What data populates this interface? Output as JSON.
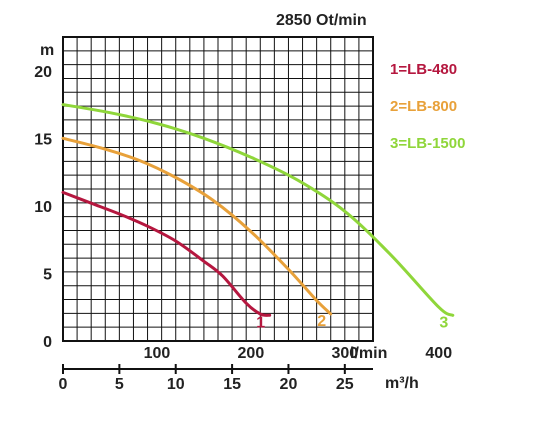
{
  "chart_data": {
    "type": "line",
    "title": "2850 Ot/min",
    "ylabel": "m",
    "ylim": [
      0,
      22.5
    ],
    "yticks": [
      "0",
      "5",
      "10",
      "15",
      "20"
    ],
    "x_flow_lpm": {
      "unit": "l/min",
      "lim": [
        0,
        330
      ],
      "ticks": [
        "100",
        "200",
        "300",
        "400"
      ]
    },
    "x_flow_m3h": {
      "unit": "m³/h",
      "lim": [
        0,
        27.5
      ],
      "ticks": [
        "0",
        "5",
        "10",
        "15",
        "20",
        "25"
      ]
    },
    "grid": true,
    "legend_position": "right",
    "series": [
      {
        "name": "1=LB-480",
        "label": "1",
        "color": "#b5173f",
        "flow_lpm": [
          0,
          30,
          60,
          90,
          120,
          150,
          170,
          195,
          210,
          220
        ],
        "head_m": [
          11,
          10.2,
          9.4,
          8.5,
          7.4,
          5.9,
          4.8,
          2.8,
          2.0,
          1.9
        ]
      },
      {
        "name": "2=LB-800",
        "label": "2",
        "color": "#e8a13a",
        "flow_lpm": [
          0,
          40,
          80,
          120,
          160,
          200,
          240,
          270,
          285
        ],
        "head_m": [
          15,
          14.3,
          13.4,
          12.1,
          10.4,
          8.1,
          5.3,
          3.0,
          2.0
        ]
      },
      {
        "name": "3=LB-1500",
        "label": "3",
        "color": "#8fd63a",
        "flow_lpm": [
          0,
          50,
          100,
          150,
          200,
          250,
          300,
          350,
          400,
          415
        ],
        "head_m": [
          17.5,
          16.9,
          16.1,
          15.0,
          13.6,
          11.9,
          9.6,
          6.3,
          2.5,
          1.9
        ]
      }
    ]
  }
}
